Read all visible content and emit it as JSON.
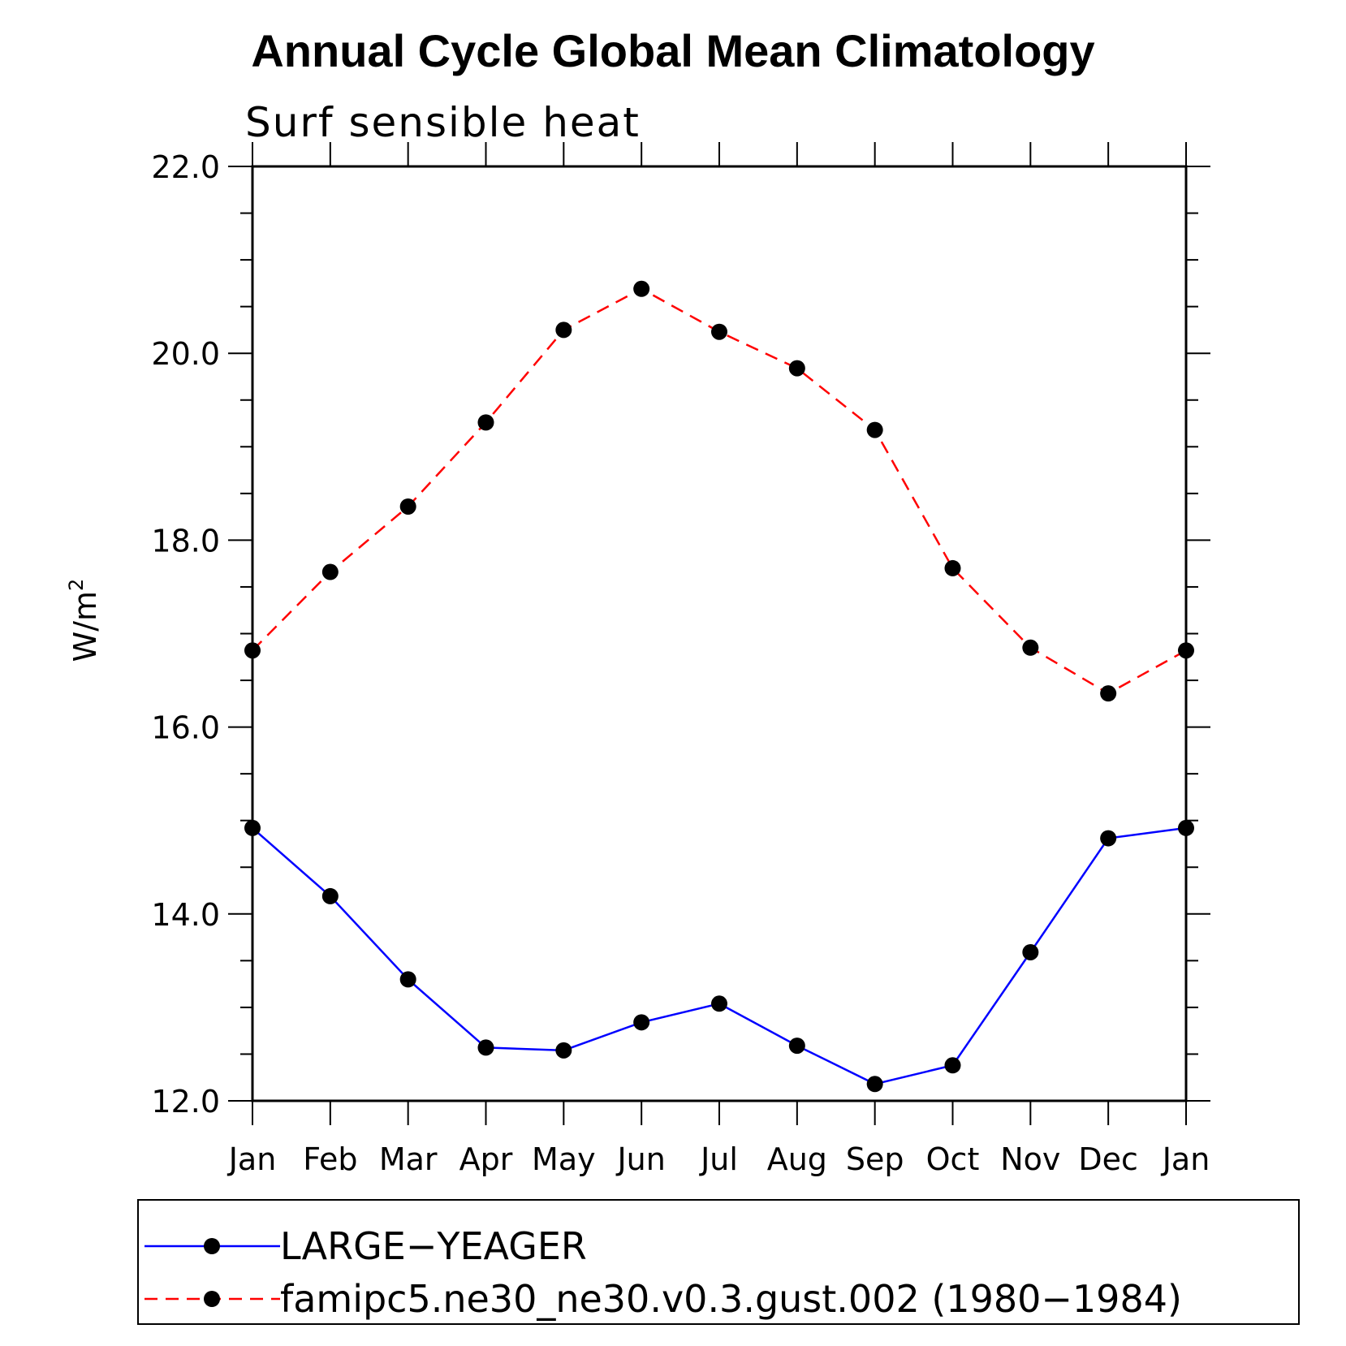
{
  "chart_data": {
    "type": "line",
    "title": "Annual Cycle Global Mean Climatology",
    "subtitle": "Surf sensible heat",
    "xlabel": "",
    "ylabel_base": "W/m",
    "ylabel_sup": "2",
    "categories": [
      "Jan",
      "Feb",
      "Mar",
      "Apr",
      "May",
      "Jun",
      "Jul",
      "Aug",
      "Sep",
      "Oct",
      "Nov",
      "Dec",
      "Jan"
    ],
    "ylim": [
      12.0,
      22.0
    ],
    "yticks": [
      "12.0",
      "14.0",
      "16.0",
      "18.0",
      "20.0",
      "22.0"
    ],
    "grid": false,
    "legend_position": "bottom",
    "series": [
      {
        "name": "LARGE−YEAGER",
        "color": "#0000ff",
        "dash": "solid",
        "marker": "filled-circle",
        "values": [
          14.92,
          14.19,
          13.3,
          12.57,
          12.54,
          12.84,
          13.04,
          12.59,
          12.18,
          12.38,
          13.59,
          14.81,
          14.92
        ]
      },
      {
        "name": "famipc5.ne30_ne30.v0.3.gust.002 (1980−1984)",
        "color": "#ff0000",
        "dash": "dashed",
        "marker": "filled-circle",
        "values": [
          16.82,
          17.66,
          18.36,
          19.26,
          20.25,
          20.69,
          20.23,
          19.84,
          19.18,
          17.7,
          16.85,
          16.36,
          16.82
        ]
      }
    ]
  }
}
